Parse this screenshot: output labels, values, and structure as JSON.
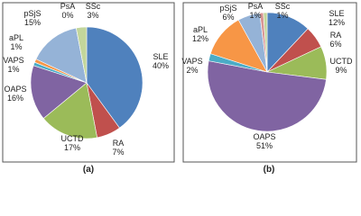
{
  "chart_data": [
    {
      "type": "pie",
      "caption": "(a)",
      "categories": [
        "SLE",
        "RA",
        "UCTD",
        "OAPS",
        "VAPS",
        "aPL",
        "pSjS",
        "PsA",
        "SSc"
      ],
      "values": [
        40,
        7,
        17,
        16,
        1,
        1,
        15,
        0,
        3
      ],
      "value_labels": [
        "40%",
        "7%",
        "17%",
        "16%",
        "1%",
        "1%",
        "15%",
        "0%",
        "3%"
      ],
      "colors": [
        "#4f81bd",
        "#c0504d",
        "#9bbb59",
        "#8064a2",
        "#4bacc6",
        "#f79646",
        "#95b3d7",
        "#d99694",
        "#c3d69b"
      ]
    },
    {
      "type": "pie",
      "caption": "(b)",
      "categories": [
        "SLE",
        "RA",
        "UCTD",
        "OAPS",
        "VAPS",
        "aPL",
        "pSjS",
        "PsA",
        "SSc"
      ],
      "values": [
        12,
        6,
        9,
        51,
        2,
        12,
        6,
        1,
        1
      ],
      "value_labels": [
        "12%",
        "6%",
        "9%",
        "51%",
        "2%",
        "12%",
        "6%",
        "1%",
        "1%"
      ],
      "colors": [
        "#4f81bd",
        "#c0504d",
        "#9bbb59",
        "#8064a2",
        "#4bacc6",
        "#f79646",
        "#95b3d7",
        "#d99694",
        "#c3d69b"
      ]
    }
  ]
}
